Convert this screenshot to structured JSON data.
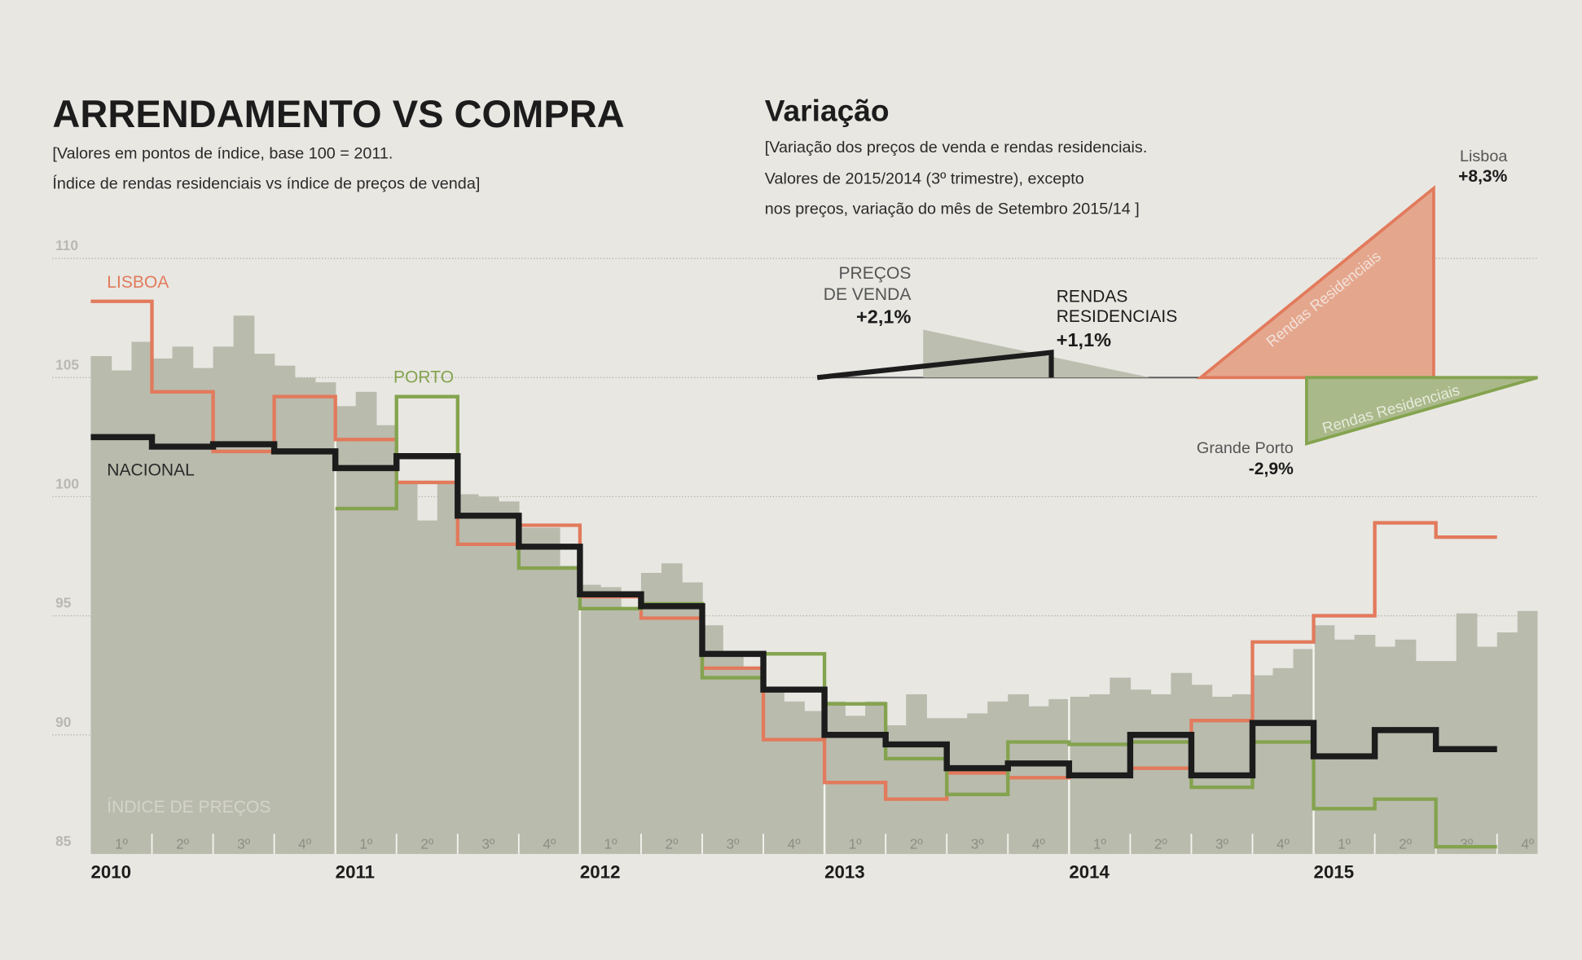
{
  "left_panel": {
    "title": "ARRENDAMENTO VS COMPRA",
    "subtitle_lines": [
      "[Valores em pontos de índice, base 100 = 2011.",
      "Índice de rendas residenciais vs índice de preços de venda]"
    ]
  },
  "colors": {
    "background": "#e8e7e2",
    "price_index": "#b9bbad",
    "lisboa": "#e27a5c",
    "porto": "#84a34e",
    "nacional": "#1c1c1c",
    "lisboa_fill": "#e4a78e",
    "porto_fill": "#aab98a",
    "gray_fill": "#bcbeb0"
  },
  "chart_data": [
    {
      "type": "line",
      "ylim": [
        85,
        110
      ],
      "yticks": [
        "110",
        "105",
        "100",
        "95",
        "90",
        "85"
      ],
      "ytick_values": [
        110,
        105,
        100,
        95,
        90,
        85
      ],
      "grid": true,
      "years": [
        "2010",
        "2011",
        "2012",
        "2013",
        "2014",
        "2015"
      ],
      "quarter_labels": [
        "1º",
        "2º",
        "3º",
        "4º"
      ],
      "series": [
        {
          "name": "LISBOA",
          "kind": "quarterly-step",
          "start": "2010 Q1",
          "values": [
            108.2,
            104.4,
            101.9,
            104.2,
            102.4,
            100.6,
            98.0,
            98.8,
            95.8,
            94.9,
            92.8,
            89.8,
            88.0,
            87.3,
            88.4,
            88.2,
            88.3,
            88.6,
            90.6,
            93.9,
            95.0,
            98.9,
            98.3
          ]
        },
        {
          "name": "PORTO",
          "kind": "quarterly-step",
          "start": "2011 Q1",
          "values": [
            99.5,
            104.2,
            99.2,
            97.0,
            95.3,
            95.5,
            92.4,
            93.4,
            91.3,
            89.0,
            87.5,
            89.7,
            89.6,
            89.7,
            87.8,
            89.7,
            86.9,
            87.3,
            85.3
          ]
        },
        {
          "name": "NACIONAL",
          "kind": "quarterly-step",
          "start": "2010 Q1",
          "values": [
            102.5,
            102.1,
            102.2,
            101.9,
            101.2,
            101.7,
            99.2,
            97.9,
            95.9,
            95.4,
            93.4,
            91.9,
            90.0,
            89.6,
            88.6,
            88.8,
            88.3,
            90.0,
            88.3,
            90.5,
            89.1,
            90.2,
            89.4
          ]
        },
        {
          "name": "ÍNDICE DE PREÇOS",
          "kind": "monthly-area",
          "start": "2010-01",
          "values": [
            105.9,
            105.3,
            106.5,
            105.8,
            106.3,
            105.4,
            106.3,
            107.6,
            106.0,
            105.5,
            105.0,
            104.8,
            103.8,
            104.4,
            103.0,
            100.6,
            99.0,
            100.6,
            100.1,
            100.0,
            99.8,
            98.7,
            98.7,
            97.1,
            96.3,
            96.2,
            95.3,
            96.8,
            97.2,
            96.4,
            94.6,
            93.3,
            92.8,
            91.9,
            91.4,
            91.0,
            91.4,
            90.8,
            91.4,
            90.4,
            91.7,
            90.7,
            90.7,
            90.9,
            91.4,
            91.7,
            91.2,
            91.5,
            91.6,
            91.7,
            92.4,
            91.9,
            91.7,
            92.6,
            92.1,
            91.6,
            91.7,
            92.5,
            92.8,
            93.6,
            94.6,
            94.0,
            94.2,
            93.7,
            94.0,
            93.1,
            93.1,
            95.1,
            93.7,
            94.3,
            95.2
          ]
        }
      ]
    },
    {
      "type": "bar",
      "title": "Variação",
      "note_lines": [
        "[Variação dos preços de venda e rendas residenciais.",
        "Valores de 2015/2014 (3º trimestre), excepto",
        "nos preços, variação do mês de Setembro 2015/14 ]"
      ],
      "unit": "%",
      "items": [
        {
          "label_lines": [
            "PREÇOS",
            "DE VENDA"
          ],
          "value": 2.1,
          "display": "+2,1%"
        },
        {
          "label_lines": [
            "RENDAS",
            "RESIDENCIAIS"
          ],
          "value": 1.1,
          "display": "+1,1%"
        },
        {
          "label_lines": [
            "Lisboa"
          ],
          "value": 8.3,
          "display": "+8,3%",
          "inner_label": "Rendas Residenciais"
        },
        {
          "label_lines": [
            "Grande Porto"
          ],
          "value": -2.9,
          "display": "-2,9%",
          "inner_label": "Rendas Residenciais"
        }
      ]
    }
  ]
}
